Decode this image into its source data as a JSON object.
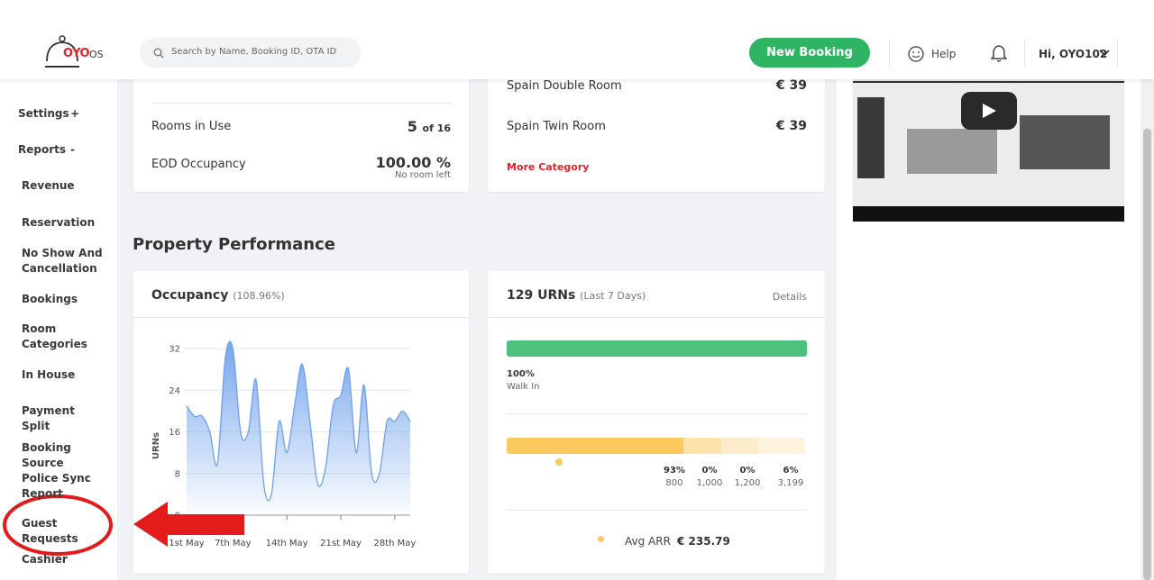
{
  "header": {
    "logo": "OYO",
    "logo_suffix": "OS",
    "search_placeholder": "Search by Name, Booking ID, OTA ID",
    "new_booking": "New Booking",
    "help": "Help",
    "user": "Hi, OYO102"
  },
  "sidebar": {
    "items": [
      {
        "label": "Settings",
        "toggle": "+"
      },
      {
        "label": "Reports",
        "toggle": "-"
      },
      {
        "label": "Revenue"
      },
      {
        "label": "Reservation"
      },
      {
        "label": "No Show And Cancellation"
      },
      {
        "label": "Bookings"
      },
      {
        "label": "Room Categories"
      },
      {
        "label": "In House"
      },
      {
        "label": "Payment Split"
      },
      {
        "label": "Booking Source"
      },
      {
        "label": "Police Sync Report"
      },
      {
        "label": "Guest Requests"
      },
      {
        "label": "Cashier"
      }
    ]
  },
  "summary": {
    "rows": [
      {
        "label": "Rooms in Use",
        "value": "5",
        "suffix": "of 16"
      },
      {
        "label": "EOD Occupancy",
        "value": "100.00 %",
        "note": "No room left"
      }
    ]
  },
  "room_categories": {
    "rows": [
      {
        "name": "Spain Double Room",
        "price": "€ 39"
      },
      {
        "name": "Spain Twin Room",
        "price": "€ 39"
      }
    ],
    "more": "More Category"
  },
  "section_title": "Property Performance",
  "occupancy": {
    "title": "Occupancy",
    "subtitle": "(108.96%)"
  },
  "chart_data": {
    "type": "area",
    "ylabel": "URNs",
    "x": [
      1,
      2,
      3,
      4,
      5,
      6,
      7,
      8,
      9,
      10,
      11,
      12,
      13,
      14,
      15,
      16,
      17,
      18,
      19,
      20,
      21,
      22,
      23,
      24,
      25,
      26,
      27,
      28,
      29,
      30
    ],
    "values": [
      21,
      19,
      19,
      16,
      10,
      30,
      32,
      16,
      16,
      26,
      6,
      4,
      18,
      12,
      21,
      29,
      18,
      6,
      9,
      21,
      23,
      28,
      12,
      25,
      8,
      8,
      18,
      18,
      20,
      18
    ],
    "color": "#6fa1ec",
    "xlim": [
      1,
      30
    ],
    "xticks": [
      {
        "value": 1,
        "label": "1st May"
      },
      {
        "value": 7,
        "label": "7th May"
      },
      {
        "value": 14,
        "label": "14th May"
      },
      {
        "value": 21,
        "label": "21st May"
      },
      {
        "value": 28,
        "label": "28th May"
      }
    ],
    "ylim": [
      0,
      32
    ],
    "yticks": [
      0,
      8,
      16,
      24,
      32
    ],
    "grid": true
  },
  "urns": {
    "title": "129 URNs",
    "subtitle": "(Last 7 Days)",
    "details": "Details",
    "walk_in": {
      "percent": "100%",
      "label": "Walk In"
    },
    "segments": [
      {
        "percent": "93%",
        "amount": "800"
      },
      {
        "percent": "0%",
        "amount": "1,000"
      },
      {
        "percent": "0%",
        "amount": "1,200"
      },
      {
        "percent": "6%",
        "amount": "3,199"
      }
    ],
    "avg_label": "Avg ARR",
    "avg_value": "€ 235.79"
  }
}
